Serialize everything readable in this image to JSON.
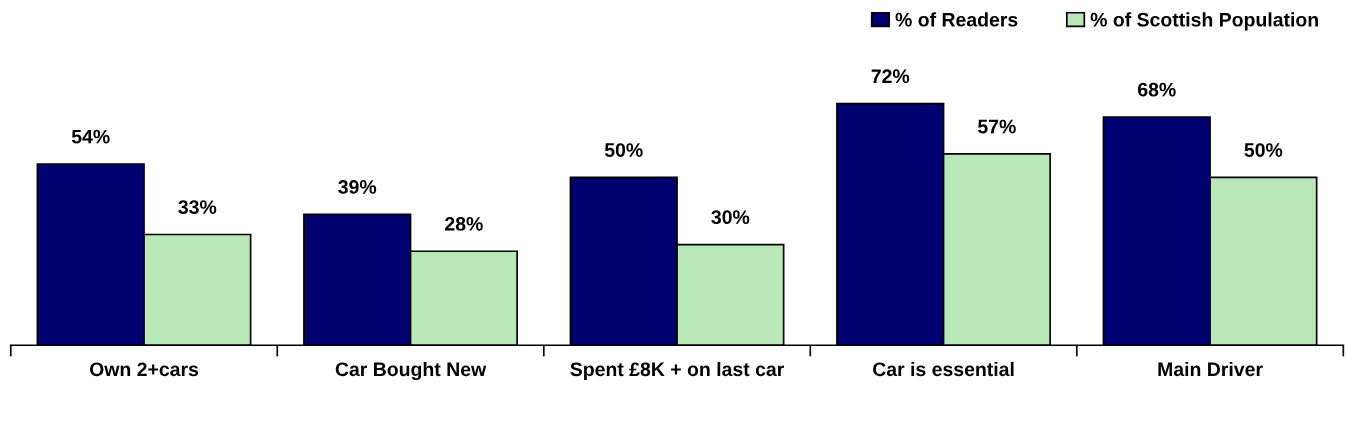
{
  "chart_data": {
    "type": "bar",
    "categories": [
      "Own 2+cars",
      "Car Bought New",
      "Spent £8K + on last car",
      "Car is essential",
      "Main Driver"
    ],
    "series": [
      {
        "name": "% of Readers",
        "color": "#000070",
        "values": [
          54,
          39,
          50,
          72,
          68
        ],
        "value_labels": [
          "54%",
          "39%",
          "50%",
          "72%",
          "68%"
        ]
      },
      {
        "name": "% of Scottish Population",
        "color": "#b8e8b8",
        "values": [
          33,
          28,
          30,
          57,
          50
        ],
        "value_labels": [
          "33%",
          "28%",
          "30%",
          "57%",
          "50%"
        ]
      }
    ],
    "legend": "top right",
    "grid": false
  }
}
